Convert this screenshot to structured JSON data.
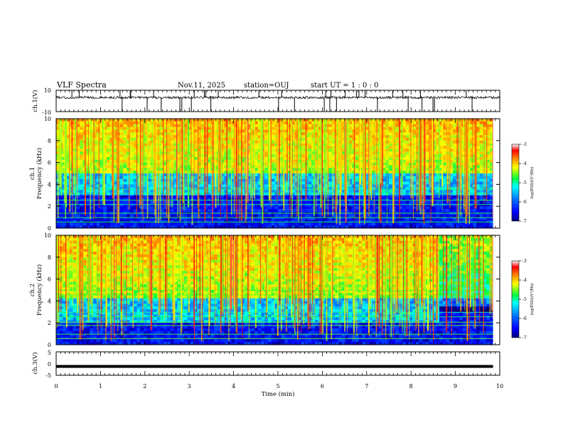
{
  "header": {
    "title": "VLF Spectra",
    "date": "Nov.11, 2025",
    "station": "station=OUJ",
    "start_ut": "start  UT =  1 : 0  : 0"
  },
  "chart_data": [
    {
      "type": "line",
      "panel": "ch1-waveform",
      "ylabel": "ch.1(V)",
      "ylim": [
        -10,
        10
      ],
      "ytick_labels": [
        "10",
        "-10"
      ],
      "xlim": [
        0,
        10
      ],
      "color": "#000000"
    },
    {
      "type": "heatmap",
      "panel": "ch1-spectrogram",
      "ylabel": "ch.1\nFrequency (kHz)",
      "ylabel_lines": [
        "ch.1",
        "Frequency (kHz)"
      ],
      "ylim": [
        0,
        10
      ],
      "ytick_labels": [
        "0",
        "2",
        "4",
        "6",
        "8",
        "10"
      ],
      "xlim": [
        0,
        9.85
      ],
      "colorbar": {
        "label": "log(PSD)(V²/Hz)",
        "range": [
          -7,
          -3
        ],
        "tick_labels": [
          "-3",
          "-4",
          "-5",
          "-6",
          "-7"
        ]
      },
      "features": {
        "background_band_khz": [
          0,
          3
        ],
        "activity_band_khz": [
          3,
          10
        ],
        "noise_band_khz": [
          2,
          2.4
        ],
        "low_line_khz": 0.6
      }
    },
    {
      "type": "heatmap",
      "panel": "ch2-spectrogram",
      "ylabel": "ch.2\nFrequency (kHz)",
      "ylabel_lines": [
        "ch.2",
        "Frequency (kHz)"
      ],
      "ylim": [
        0,
        10
      ],
      "ytick_labels": [
        "0",
        "2",
        "4",
        "6",
        "8",
        "10"
      ],
      "xlim": [
        0,
        9.85
      ],
      "colorbar": {
        "label": "log(PSD)(V²/Hz)",
        "range": [
          -7,
          -3
        ],
        "tick_labels": [
          "-3",
          "-4",
          "-5",
          "-6",
          "-7"
        ]
      },
      "features": {
        "background_band_khz": [
          0,
          2
        ],
        "activity_band_khz": [
          2.2,
          10
        ],
        "band_change_min": 8.6
      }
    },
    {
      "type": "line",
      "panel": "ch3-waveform",
      "ylabel": "ch.3(V)",
      "ylim": [
        -5,
        5
      ],
      "ytick_labels": [
        "5",
        "0",
        "-5"
      ],
      "xlim": [
        0,
        10
      ],
      "xlabel": "Time (min)",
      "xtick_labels": [
        "0",
        "1",
        "2",
        "3",
        "4",
        "5",
        "6",
        "7",
        "8",
        "9",
        "10"
      ],
      "constant_value": -1.2,
      "color": "#000000"
    }
  ],
  "colors": {
    "axes": "#000000",
    "background": "#ffffff",
    "colormap": [
      "#00008f",
      "#0000ff",
      "#0080ff",
      "#00ffff",
      "#80ff80",
      "#ffff00",
      "#ff8000",
      "#ff0000",
      "#ffffff"
    ]
  }
}
